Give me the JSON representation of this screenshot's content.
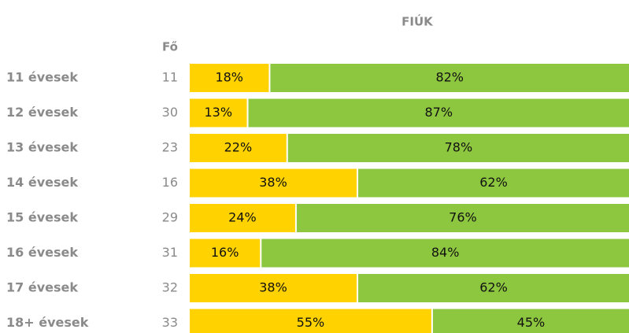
{
  "chart_data": {
    "type": "stacked_bar_100",
    "title": "FIÚK",
    "counts_label": "Fő",
    "categories": [
      "11 évesek",
      "12 évesek",
      "13 évesek",
      "14 évesek",
      "15 évesek",
      "16 évesek",
      "17 évesek",
      "18+ évesek"
    ],
    "counts": [
      11,
      30,
      23,
      16,
      29,
      31,
      32,
      33
    ],
    "xlim": [
      0,
      100
    ],
    "series": [
      {
        "color": "#ffd200",
        "values": [
          18,
          13,
          22,
          38,
          24,
          16,
          38,
          55
        ],
        "value_labels": [
          "18%",
          "13%",
          "22%",
          "38%",
          "24%",
          "16%",
          "38%",
          "55%"
        ]
      },
      {
        "color": "#8dc63f",
        "values": [
          82,
          87,
          78,
          62,
          76,
          84,
          62,
          45
        ],
        "value_labels": [
          "82%",
          "87%",
          "78%",
          "62%",
          "76%",
          "84%",
          "62%",
          "45%"
        ]
      }
    ]
  }
}
